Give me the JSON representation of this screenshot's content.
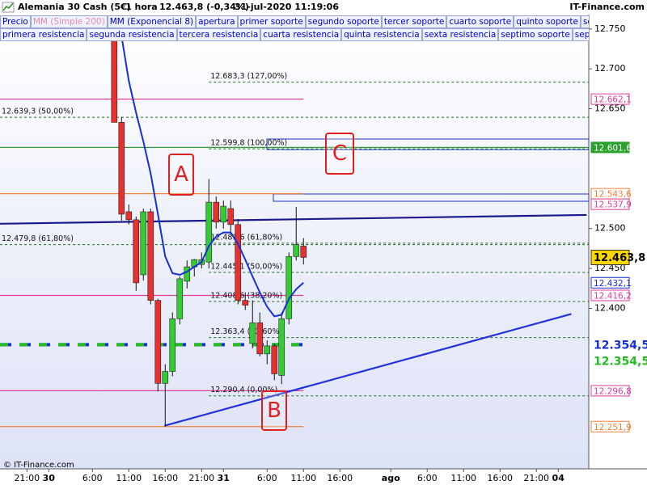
{
  "header": {
    "title": "Alemania 30 Cash (5€)",
    "interval": "1 hora",
    "quote": "12.463,8 (-0,34%)",
    "datetime": "31-jul-2020 11:19:06",
    "brand": "IT-Finance.com"
  },
  "toolbar": {
    "rows": [
      [
        "Precio",
        "MM (Simple 200)",
        "MM (Exponencial 8)",
        "apertura",
        "primer soporte",
        "segundo soporte",
        "tercer soporte",
        "cuarto soporte",
        "quinto soporte",
        "sexto soporte"
      ],
      [
        "primera resistencia",
        "segunda resistencia",
        "tercera resistencia",
        "cuarta resistencia",
        "quinta resistencia",
        "sexta resistencia",
        "septimo soporte",
        "septima resister"
      ]
    ]
  },
  "footer": "© IT-Finance.com",
  "chart_data": {
    "type": "candlestick",
    "xlim": [
      -3.7,
      77.2
    ],
    "ylim": [
      12199,
      12766
    ],
    "xticks": [
      {
        "value": 0,
        "label": "21:00"
      },
      {
        "value": 3,
        "label": "30"
      },
      {
        "value": 9,
        "label": "6:00"
      },
      {
        "value": 14,
        "label": "11:00"
      },
      {
        "value": 19,
        "label": "16:00"
      },
      {
        "value": 24,
        "label": "21:00"
      },
      {
        "value": 27,
        "label": "31"
      },
      {
        "value": 33,
        "label": "6:00"
      },
      {
        "value": 38,
        "label": "11:00"
      },
      {
        "value": 43,
        "label": "16:00"
      },
      {
        "value": 50,
        "label": "ago"
      },
      {
        "value": 55,
        "label": "6:00"
      },
      {
        "value": 60,
        "label": "11:00"
      },
      {
        "value": 65,
        "label": "16:00"
      },
      {
        "value": 70,
        "label": "21:00"
      },
      {
        "value": 73,
        "label": "04"
      }
    ],
    "yticks": [
      {
        "value": 12750,
        "label": "12.750"
      },
      {
        "value": 12700,
        "label": "12.700"
      },
      {
        "value": 12650,
        "label": "12.650"
      },
      {
        "value": 12500,
        "label": "12.500"
      },
      {
        "value": 12450,
        "label": "12.450"
      },
      {
        "value": 12400,
        "label": "12.400"
      }
    ],
    "candles": {
      "x": [
        12,
        13,
        14,
        15,
        16,
        17,
        18,
        19,
        20,
        21,
        22,
        23,
        24,
        25,
        26,
        27,
        28,
        29,
        30,
        31,
        32,
        33,
        34,
        35,
        36,
        37,
        38
      ],
      "open": [
        12750,
        12633,
        12521,
        12511,
        12442,
        12521,
        12410,
        12306,
        12321,
        12387,
        12434,
        12452,
        12455,
        12458,
        12533,
        12508,
        12525,
        12505,
        12410,
        12356,
        12382,
        12343,
        12353,
        12316,
        12387,
        12465,
        12478
      ],
      "high": [
        12766,
        12640,
        12530,
        12515,
        12525,
        12525,
        12412,
        12330,
        12395,
        12440,
        12460,
        12462,
        12470,
        12562,
        12540,
        12535,
        12535,
        12512,
        12420,
        12410,
        12395,
        12360,
        12356,
        12395,
        12470,
        12527,
        12488
      ],
      "low": [
        12633,
        12510,
        12505,
        12422,
        12435,
        12405,
        12296,
        12252,
        12315,
        12380,
        12425,
        12440,
        12450,
        12450,
        12500,
        12500,
        12495,
        12405,
        12398,
        12350,
        12340,
        12330,
        12310,
        12305,
        12380,
        12460,
        12455
      ],
      "close": [
        12633,
        12518,
        12511,
        12432,
        12521,
        12410,
        12306,
        12321,
        12387,
        12437,
        12452,
        12461,
        12461,
        12533,
        12508,
        12528,
        12505,
        12410,
        12404,
        12382,
        12343,
        12353,
        12318,
        12387,
        12465,
        12480,
        12463.8
      ],
      "up_color": "#33cc33",
      "down_color": "#e83030"
    },
    "ema": {
      "x": [
        13,
        14,
        15,
        16,
        17,
        18,
        19,
        20,
        21,
        22,
        23,
        24,
        25,
        26,
        27,
        28,
        29,
        30,
        31,
        32,
        33,
        34,
        35,
        36,
        37,
        38
      ],
      "values": [
        12741,
        12685,
        12645,
        12609,
        12569,
        12518,
        12465,
        12444,
        12442,
        12446,
        12452,
        12458,
        12478,
        12490,
        12495,
        12495,
        12481,
        12461,
        12440,
        12420,
        12402,
        12390,
        12392,
        12412,
        12424,
        12432.1
      ],
      "color": "#1530d8"
    },
    "trendlines": [
      {
        "x": [
          -3.7,
          76.9
        ],
        "y": [
          12506,
          12517
        ],
        "color": "#1a1a8c"
      },
      {
        "x": [
          18.9,
          74.8
        ],
        "y": [
          12253,
          12393
        ],
        "color": "#2233dd"
      }
    ],
    "fib_levels": [
      {
        "value": 12683.3,
        "label": "12.683,3 (127,00%)",
        "x_start": 25
      },
      {
        "value": 12639.3,
        "label": "12.639,3 (50,00%)",
        "x_start": -3.7
      },
      {
        "value": 12599.8,
        "label": "12.599,8 (100,00%)",
        "x_start": 25
      },
      {
        "value": 12479.8,
        "label": "12.479,8 (61,80%)",
        "x_start": -3.7
      },
      {
        "value": 12481.6,
        "label": "12.481,6 (61,80%)",
        "x_start": 25
      },
      {
        "value": 12445.1,
        "label": "12.445,1 (50,00%)",
        "x_start": 25
      },
      {
        "value": 12408.6,
        "label": "12.408,6 (38,20%)",
        "x_start": 25
      },
      {
        "value": 12363.4,
        "label": "12.363,4 (23,60%)",
        "x_start": 25
      },
      {
        "value": 12290.4,
        "label": "12.290,4 (0,00%)",
        "x_start": 25
      }
    ],
    "fib_color": "#1f6b1f",
    "levels": [
      {
        "value": 12662.1,
        "label": "12.662,1",
        "color": "#e03c9c",
        "style": "box",
        "line": "solid",
        "x_end": 38
      },
      {
        "value": 12601.6,
        "label": "12.601,6",
        "color": "#2ca02c",
        "style": "fill",
        "line": "solid",
        "x_end": 77.2
      },
      {
        "value": 12543.6,
        "label": "12.543,6",
        "color": "#f0823c",
        "style": "box",
        "line": "solid",
        "x_end": 38
      },
      {
        "value": 12537.9,
        "label": "12.537,9",
        "color": "#e03c9c",
        "style": "box",
        "line": "none",
        "x_end": 38
      },
      {
        "value": 12463.8,
        "label": "12.463,8",
        "color": "#ffd700",
        "style": "current",
        "line": "none",
        "x_end": 38
      },
      {
        "value": 12432.1,
        "label": "12.432,1",
        "color": "#1530d8",
        "style": "box",
        "line": "none",
        "x_end": 38
      },
      {
        "value": 12416.2,
        "label": "12.416,2",
        "color": "#e03c9c",
        "style": "box",
        "line": "solid",
        "x_end": 38
      },
      {
        "value": 12354.5,
        "label": "12.354,5",
        "color": "#1530d8",
        "style": "bold",
        "line": "dashed",
        "x_end": 38
      },
      {
        "value": 12354.5,
        "label": "12.354,5",
        "color": "#22bb22",
        "style": "bold",
        "line": "dashed-offset",
        "x_end": 38
      },
      {
        "value": 12296.8,
        "label": "12.296,8",
        "color": "#e03c9c",
        "style": "box",
        "line": "solid",
        "x_end": 38
      },
      {
        "value": 12251.9,
        "label": "12.251,9",
        "color": "#f0823c",
        "style": "box",
        "line": "solid",
        "x_end": 38
      }
    ],
    "annotations": [
      "A",
      "B",
      "C"
    ]
  }
}
